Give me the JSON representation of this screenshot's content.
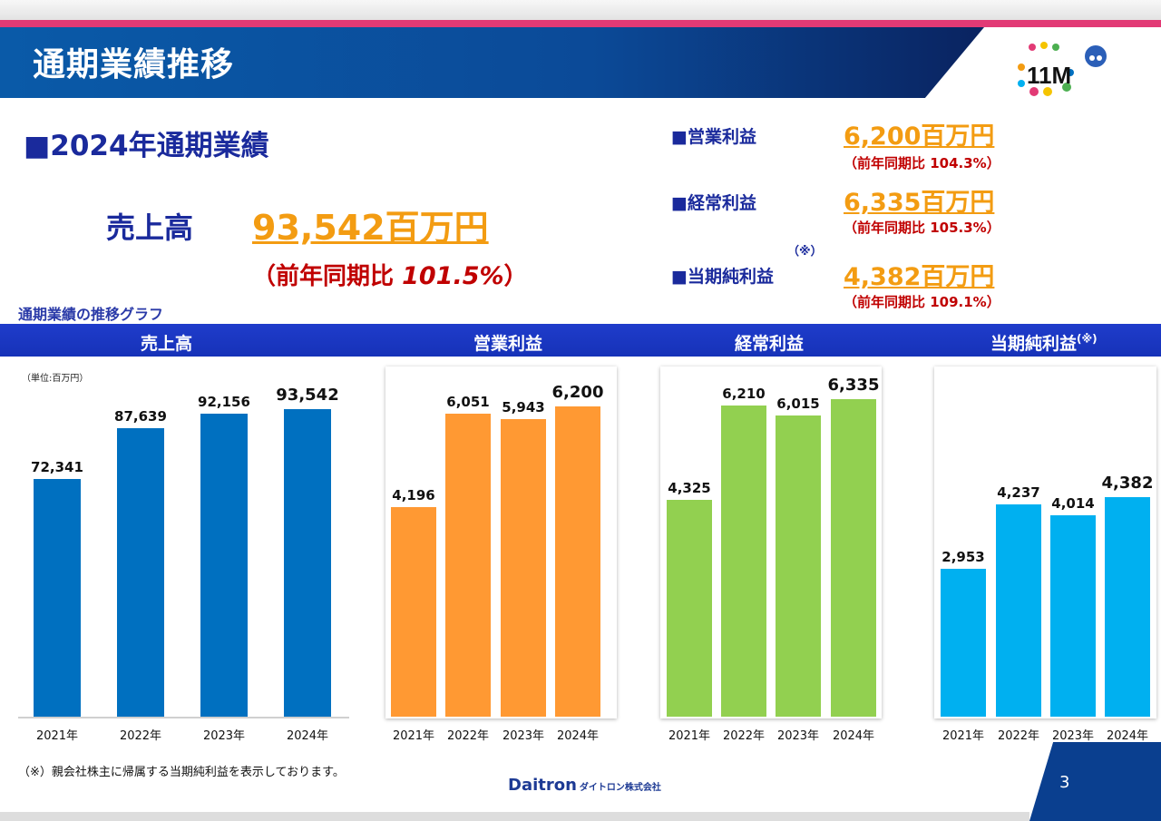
{
  "header": {
    "title": "通期業績推移",
    "logo_text": "11M"
  },
  "summary": {
    "section_title": "■2024年通期業績",
    "sales_label": "売上高",
    "sales_value": "93,542百万円",
    "sales_yoy_prefix": "（前年同期比",
    "sales_yoy_value": "101.5%",
    "sales_yoy_suffix": "）",
    "kpis": [
      {
        "label": "■営業利益",
        "value": "6,200百万円",
        "yoy": "（前年同期比  104.3%）"
      },
      {
        "label": "■経常利益",
        "value": "6,335百万円",
        "yoy": "（前年同期比  105.3%）"
      },
      {
        "label": "■当期純利益",
        "value": "4,382百万円",
        "yoy": "（前年同期比  109.1%）",
        "note": "（※）"
      }
    ]
  },
  "graph_label": "通期業績の推移グラフ",
  "chart_data": [
    {
      "type": "bar",
      "title": "売上高",
      "unit": "（単位:百万円）",
      "categories": [
        "2021年",
        "2022年",
        "2023年",
        "2024年"
      ],
      "values": [
        72341,
        87639,
        92156,
        93542
      ],
      "labels": [
        "72,341",
        "87,639",
        "92,156",
        "93,542"
      ],
      "color": "#0070c0"
    },
    {
      "type": "bar",
      "title": "営業利益",
      "categories": [
        "2021年",
        "2022年",
        "2023年",
        "2024年"
      ],
      "values": [
        4196,
        6051,
        5943,
        6200
      ],
      "labels": [
        "4,196",
        "6,051",
        "5,943",
        "6,200"
      ],
      "color": "#ff9933"
    },
    {
      "type": "bar",
      "title": "経常利益",
      "categories": [
        "2021年",
        "2022年",
        "2023年",
        "2024年"
      ],
      "values": [
        4325,
        6210,
        6015,
        6335
      ],
      "labels": [
        "4,325",
        "6,210",
        "6,015",
        "6,335"
      ],
      "color": "#92d050"
    },
    {
      "type": "bar",
      "title": "当期純利益",
      "title_note": "(※)",
      "categories": [
        "2021年",
        "2022年",
        "2023年",
        "2024年"
      ],
      "values": [
        2953,
        4237,
        4014,
        4382
      ],
      "labels": [
        "2,953",
        "4,237",
        "4,014",
        "4,382"
      ],
      "color": "#00b0f0"
    }
  ],
  "footer": {
    "note": "（※）親会社株主に帰属する当期純利益を表示しております。",
    "brand": "Daitron",
    "brand_sub": "ダイトロン株式会社",
    "page": "3"
  }
}
